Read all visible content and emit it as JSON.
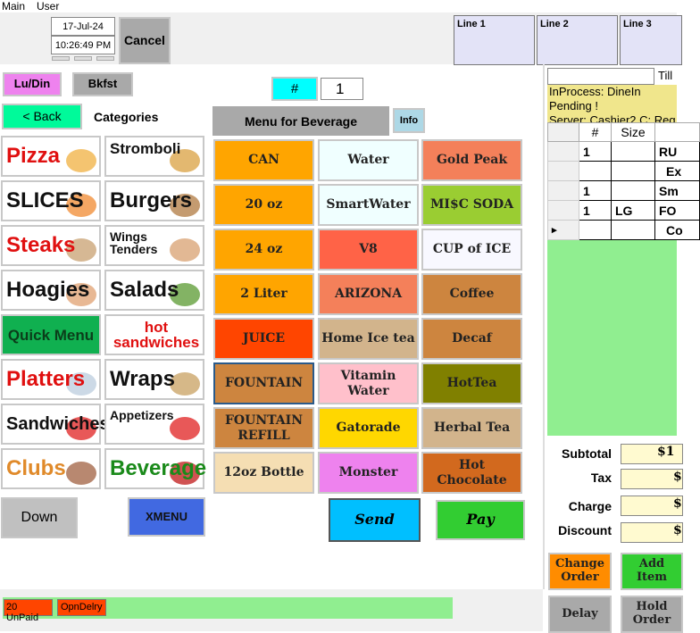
{
  "menubar": [
    "Main",
    "User"
  ],
  "header": {
    "date": "17-Jul-24",
    "time": "10:26:49 PM",
    "cancel": "Cancel",
    "lines": [
      "Line 1",
      "Line 2",
      "Line 3"
    ]
  },
  "meal_buttons": {
    "lunch_dinner": "Lu/Din",
    "breakfast": "Bkfst"
  },
  "qty": {
    "label": "#",
    "value": "1"
  },
  "nav": {
    "back": "< Back",
    "categories": "Categories"
  },
  "menu_header": {
    "title": "Menu for Beverage",
    "info": "Info"
  },
  "categories": [
    {
      "label": "Pizza",
      "color": "#e01010"
    },
    {
      "label": "Stromboli",
      "color": "#111111"
    },
    {
      "label": "SLICES",
      "color": "#111111"
    },
    {
      "label": "Burgers",
      "color": "#111111"
    },
    {
      "label": "Steaks",
      "color": "#e01010"
    },
    {
      "label": "Wings Tenders",
      "color": "#111111"
    },
    {
      "label": "Hoagies",
      "color": "#111111"
    },
    {
      "label": "Salads",
      "color": "#111111"
    },
    {
      "label": "Quick Menu",
      "color": "#0b3d1a"
    },
    {
      "label": "hot sandwiches",
      "color": "#e01010"
    },
    {
      "label": "Platters",
      "color": "#e01010"
    },
    {
      "label": "Wraps",
      "color": "#111111"
    },
    {
      "label": "Sandwiches",
      "color": "#111111"
    },
    {
      "label": "Appetizers",
      "color": "#111111"
    },
    {
      "label": "Clubs",
      "color": "#e08a2a"
    },
    {
      "label": "Beverage",
      "color": "#1a8a1a"
    }
  ],
  "category_nav": {
    "down": "Down",
    "xmenu": "XMENU"
  },
  "items": [
    {
      "label": "CAN",
      "color": "#ffa500"
    },
    {
      "label": "Water",
      "color": "#f0ffff"
    },
    {
      "label": "Gold Peak",
      "color": "#f4805a"
    },
    {
      "label": "20 oz",
      "color": "#ffa500"
    },
    {
      "label": "SmartWater",
      "color": "#f0ffff"
    },
    {
      "label": "MI$C SODA",
      "color": "#9acd32"
    },
    {
      "label": "24 oz",
      "color": "#ffa500"
    },
    {
      "label": "V8",
      "color": "#ff6347"
    },
    {
      "label": "CUP of ICE",
      "color": "#f8f8ff"
    },
    {
      "label": "2 Liter",
      "color": "#ffa500"
    },
    {
      "label": "ARIZONA",
      "color": "#f4805a"
    },
    {
      "label": "Coffee",
      "color": "#cd853f"
    },
    {
      "label": "JUICE",
      "color": "#ff4500"
    },
    {
      "label": "Home Ice tea",
      "color": "#d2b48c"
    },
    {
      "label": "Decaf",
      "color": "#cd853f"
    },
    {
      "label": "FOUNTAIN",
      "color": "#cd853f",
      "selected": true
    },
    {
      "label": "Vitamin Water",
      "color": "#ffc0cb"
    },
    {
      "label": "HotTea",
      "color": "#808000"
    },
    {
      "label": "FOUNTAIN REFILL",
      "color": "#cd853f"
    },
    {
      "label": "Gatorade",
      "color": "#ffd700"
    },
    {
      "label": "Herbal Tea",
      "color": "#d2b48c"
    },
    {
      "label": "12oz Bottle",
      "color": "#f5deb3"
    },
    {
      "label": "Monster",
      "color": "#ee82ee"
    },
    {
      "label": "Hot Chocolate",
      "color": "#d2691e"
    }
  ],
  "actions": {
    "send": "Send",
    "pay": "Pay"
  },
  "status": {
    "unpaid": "20 UnPaid",
    "open_delivery": "OpnDelry"
  },
  "order": {
    "till": "Till",
    "status_lines": [
      "InProcess: DineIn",
      "Pending !",
      "Server: Cashier2  C: Reg"
    ],
    "columns": [
      "#",
      "Size",
      ""
    ],
    "rows": [
      [
        "1",
        "",
        "RU"
      ],
      [
        "",
        "",
        "Ex"
      ],
      [
        "1",
        "",
        "Sm"
      ],
      [
        "1",
        "LG",
        "FO"
      ],
      [
        "",
        "",
        "Co"
      ]
    ]
  },
  "totals": {
    "subtotal_label": "Subtotal",
    "subtotal": "$1",
    "tax_label": "Tax",
    "tax": "$",
    "charge_label": "Charge",
    "charge": "$",
    "discount_label": "Discount",
    "discount": "$"
  },
  "order_buttons": {
    "change": "Change Order",
    "add": "Add Item",
    "delay": "Delay",
    "hold": "Hold Order"
  }
}
